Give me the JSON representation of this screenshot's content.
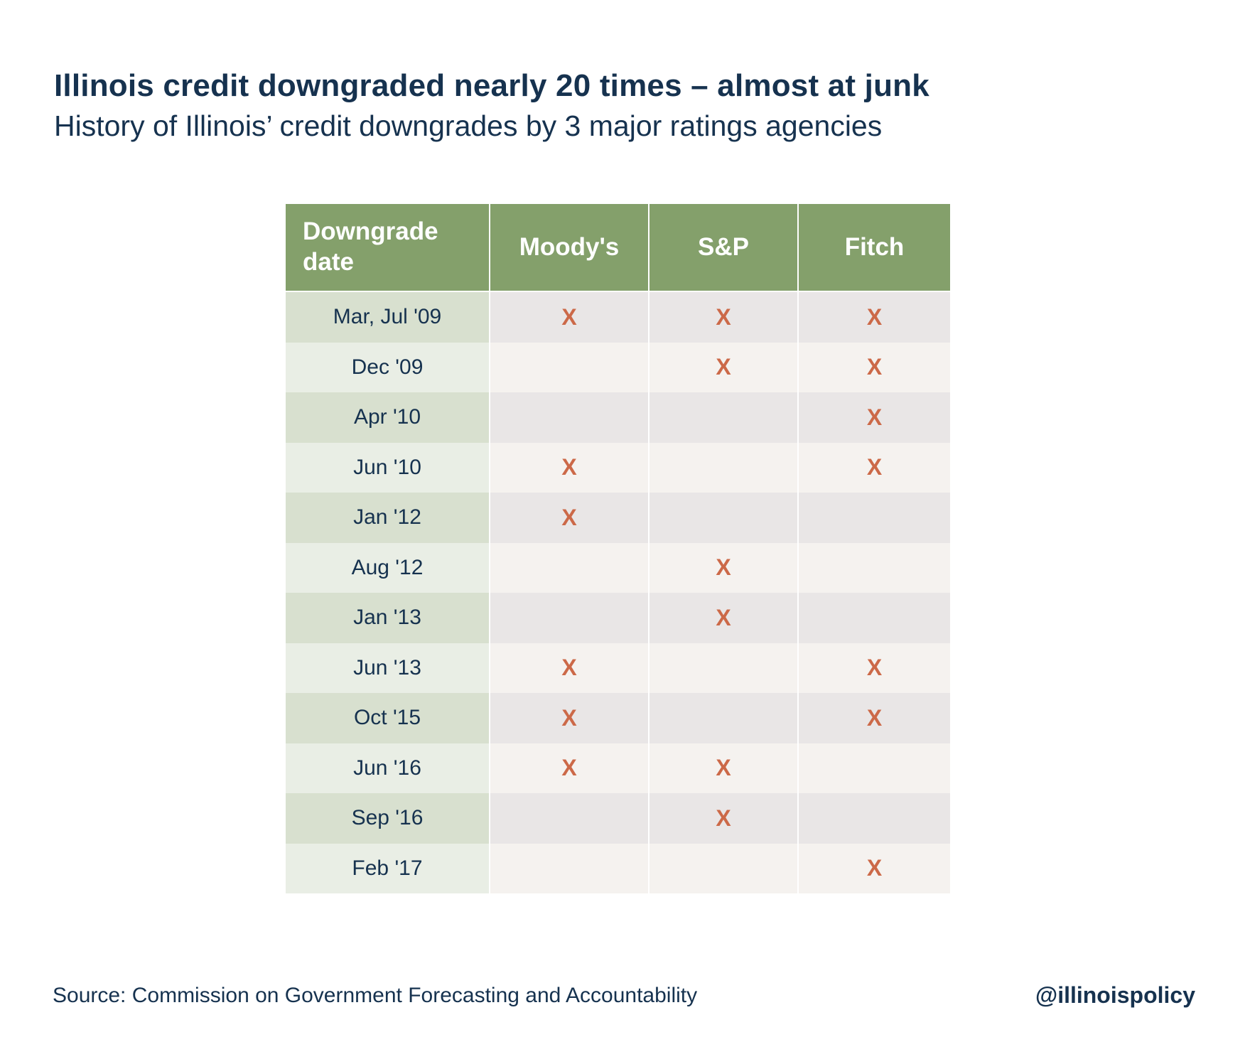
{
  "header": {
    "title": "Illinois credit downgraded nearly 20 times – almost at junk",
    "subtitle": "History of Illinois’ credit downgrades by 3 major ratings agencies"
  },
  "chart_data": {
    "type": "table",
    "columns": [
      "Downgrade date",
      "Moody's",
      "S&P",
      "Fitch"
    ],
    "mark": "X",
    "rows": [
      {
        "date": "Mar, Jul '09",
        "moodys": "X",
        "sp": "X",
        "fitch": "X"
      },
      {
        "date": "Dec '09",
        "moodys": "",
        "sp": "X",
        "fitch": "X"
      },
      {
        "date": "Apr '10",
        "moodys": "",
        "sp": "",
        "fitch": "X"
      },
      {
        "date": "Jun '10",
        "moodys": "X",
        "sp": "",
        "fitch": "X"
      },
      {
        "date": "Jan '12",
        "moodys": "X",
        "sp": "",
        "fitch": ""
      },
      {
        "date": "Aug '12",
        "moodys": "",
        "sp": "X",
        "fitch": ""
      },
      {
        "date": "Jan '13",
        "moodys": "",
        "sp": "X",
        "fitch": ""
      },
      {
        "date": "Jun '13",
        "moodys": "X",
        "sp": "",
        "fitch": "X"
      },
      {
        "date": "Oct '15",
        "moodys": "X",
        "sp": "",
        "fitch": "X"
      },
      {
        "date": "Jun '16",
        "moodys": "X",
        "sp": "X",
        "fitch": ""
      },
      {
        "date": "Sep '16",
        "moodys": "",
        "sp": "X",
        "fitch": ""
      },
      {
        "date": "Feb '17",
        "moodys": "",
        "sp": "",
        "fitch": "X"
      }
    ]
  },
  "footer": {
    "source": "Source: Commission on Government Forecasting and Accountability",
    "handle": "@illinoispolicy"
  },
  "colors": {
    "text": "#16324f",
    "header_bg": "#84a06b",
    "mark": "#cc6948"
  }
}
